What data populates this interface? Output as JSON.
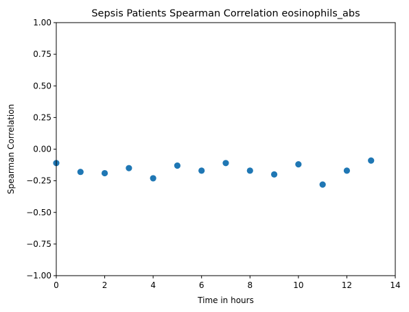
{
  "chart_data": {
    "type": "scatter",
    "title": "Sepsis Patients Spearman Correlation eosinophils_abs",
    "xlabel": "Time in hours",
    "ylabel": "Spearman Correlation",
    "xlim": [
      0,
      14
    ],
    "ylim": [
      -1.0,
      1.0
    ],
    "xticks": [
      "0",
      "2",
      "4",
      "6",
      "8",
      "10",
      "12",
      "14"
    ],
    "yticks": [
      "−1.00",
      "−0.75",
      "−0.50",
      "−0.25",
      "0.00",
      "0.25",
      "0.50",
      "0.75",
      "1.00"
    ],
    "grid": false,
    "marker_color": "#1f77b4",
    "points": [
      {
        "x": 0,
        "y": -0.11
      },
      {
        "x": 1,
        "y": -0.18
      },
      {
        "x": 2,
        "y": -0.19
      },
      {
        "x": 3,
        "y": -0.15
      },
      {
        "x": 4,
        "y": -0.23
      },
      {
        "x": 5,
        "y": -0.13
      },
      {
        "x": 6,
        "y": -0.17
      },
      {
        "x": 7,
        "y": -0.11
      },
      {
        "x": 8,
        "y": -0.17
      },
      {
        "x": 9,
        "y": -0.2
      },
      {
        "x": 10,
        "y": -0.12
      },
      {
        "x": 11,
        "y": -0.28
      },
      {
        "x": 12,
        "y": -0.17
      },
      {
        "x": 13,
        "y": -0.09
      }
    ]
  }
}
